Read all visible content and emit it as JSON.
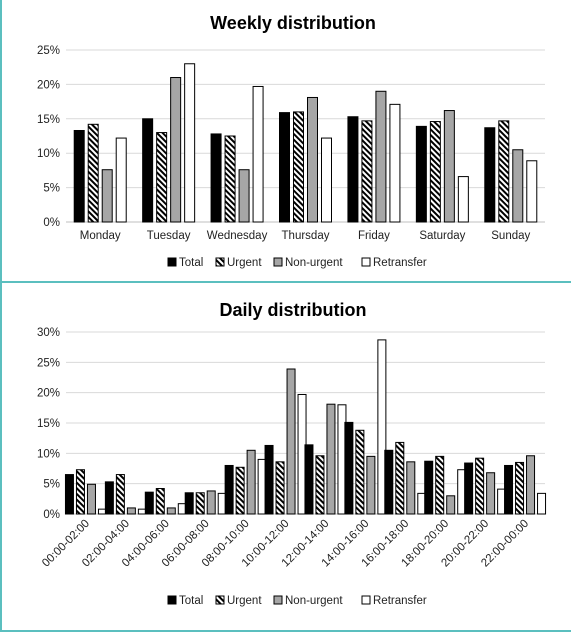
{
  "chart_data": [
    {
      "type": "bar",
      "title": "Weekly distribution",
      "xlabel": "",
      "ylabel": "",
      "ylim": [
        0,
        25
      ],
      "yticks": [
        "0%",
        "5%",
        "10%",
        "15%",
        "20%",
        "25%"
      ],
      "grid": true,
      "legend_position": "bottom",
      "categories": [
        "Monday",
        "Tuesday",
        "Wednesday",
        "Thursday",
        "Friday",
        "Saturday",
        "Sunday"
      ],
      "series": [
        {
          "name": "Total",
          "style": "solid-black",
          "values": [
            13.3,
            15.0,
            12.8,
            15.9,
            15.3,
            13.9,
            13.7
          ]
        },
        {
          "name": "Urgent",
          "style": "hatched",
          "values": [
            14.2,
            13.0,
            12.5,
            16.0,
            14.7,
            14.6,
            14.7
          ]
        },
        {
          "name": "Non-urgent",
          "style": "solid-gray",
          "values": [
            7.6,
            21.0,
            7.6,
            18.1,
            19.0,
            16.2,
            10.5
          ]
        },
        {
          "name": "Retransfer",
          "style": "white",
          "values": [
            12.2,
            23.0,
            19.7,
            12.2,
            17.1,
            6.6,
            8.9
          ]
        }
      ]
    },
    {
      "type": "bar",
      "title": "Daily distribution",
      "xlabel": "",
      "ylabel": "",
      "ylim": [
        0,
        30
      ],
      "yticks": [
        "0%",
        "5%",
        "10%",
        "15%",
        "20%",
        "25%",
        "30%"
      ],
      "grid": true,
      "legend_position": "bottom",
      "categories": [
        "00:00-02:00",
        "02:00-04:00",
        "04:00-06:00",
        "06:00-08:00",
        "08:00-10:00",
        "10:00-12:00",
        "12:00-14:00",
        "14:00-16:00",
        "16:00-18:00",
        "18:00-20:00",
        "20:00-22:00",
        "22:00-00:00"
      ],
      "series": [
        {
          "name": "Total",
          "style": "solid-black",
          "values": [
            6.5,
            5.3,
            3.6,
            3.5,
            8.0,
            11.3,
            11.4,
            15.1,
            10.5,
            8.7,
            8.4,
            8.0
          ]
        },
        {
          "name": "Urgent",
          "style": "hatched",
          "values": [
            7.3,
            6.5,
            4.2,
            3.5,
            7.7,
            8.6,
            9.6,
            13.8,
            11.8,
            9.5,
            9.2,
            8.5
          ]
        },
        {
          "name": "Non-urgent",
          "style": "solid-gray",
          "values": [
            4.9,
            1.0,
            1.0,
            3.8,
            10.5,
            23.9,
            18.1,
            9.5,
            8.6,
            3.0,
            6.8,
            9.6
          ]
        },
        {
          "name": "Retransfer",
          "style": "white",
          "values": [
            0.8,
            0.8,
            1.7,
            3.4,
            9.0,
            19.7,
            18.0,
            28.7,
            3.4,
            7.3,
            4.1,
            3.4
          ]
        }
      ]
    }
  ],
  "colors": {
    "total": "#000000",
    "non_urgent": "#a6a6a6",
    "retransfer": "#ffffff",
    "frame_accent": "#5bbfbf",
    "grid": "#d9d9d9"
  }
}
